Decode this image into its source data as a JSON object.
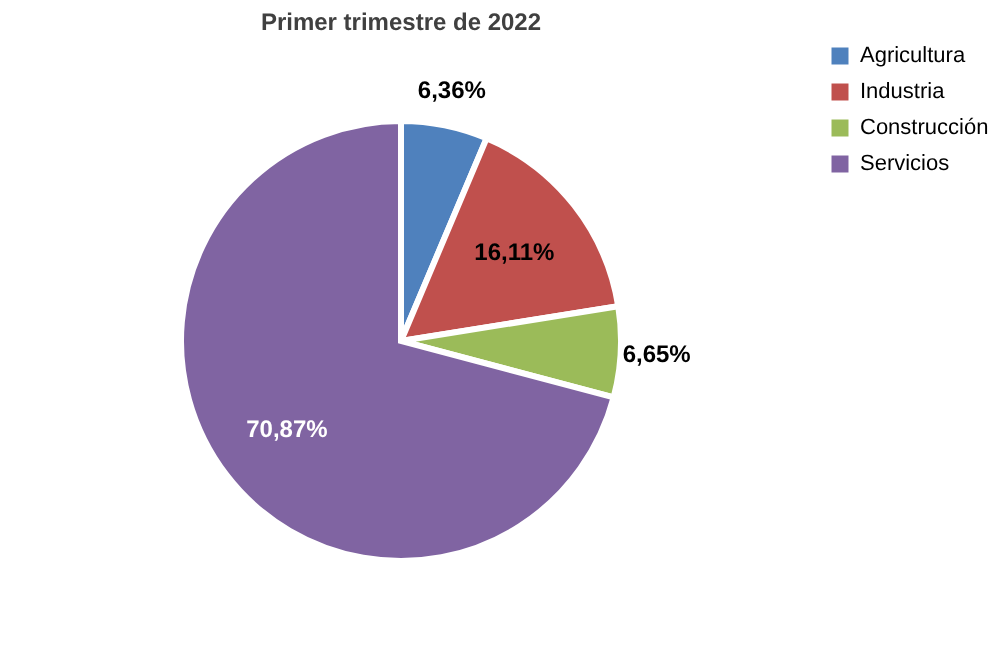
{
  "chart_data": {
    "type": "pie",
    "title": "Primer trimestre de 2022",
    "categories": [
      "Agricultura",
      "Industria",
      "Construcción",
      "Servicios"
    ],
    "values": [
      6.36,
      16.11,
      6.65,
      70.87
    ],
    "colors": [
      "#4f81bd",
      "#c0504d",
      "#9bbb59",
      "#8064a2"
    ],
    "value_labels": [
      "6,36%",
      "16,11%",
      "6,65%",
      "70,87%"
    ],
    "legend": "right"
  }
}
